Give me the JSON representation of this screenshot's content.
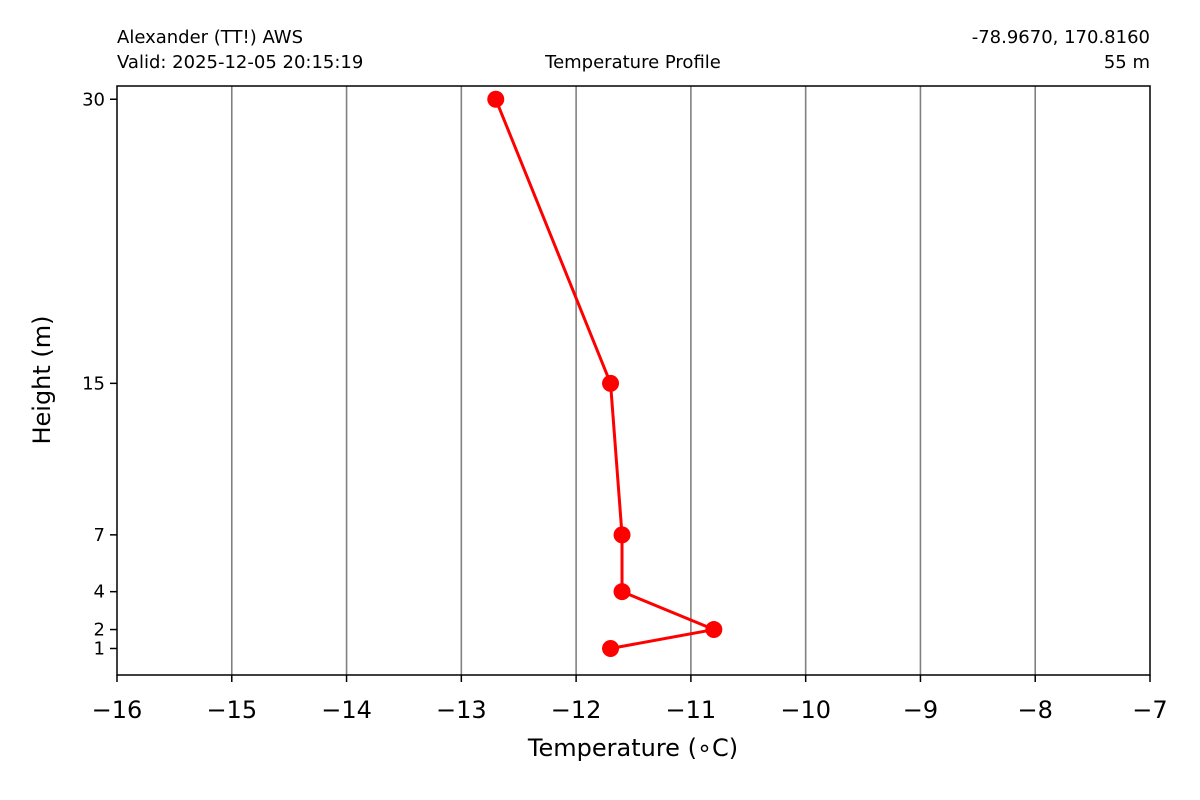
{
  "header": {
    "station": "Alexander (TT!) AWS",
    "valid": "Valid: 2025-12-05 20:15:19",
    "title": "Temperature Profile",
    "coords": "-78.9670, 170.8160",
    "elevation": "55 m"
  },
  "chart_data": {
    "type": "line",
    "title": "Temperature Profile",
    "xlabel": "Temperature (∘C)",
    "ylabel": "Height (m)",
    "xlim": [
      -16,
      -7
    ],
    "ylim": [
      -0.4,
      30.7
    ],
    "xticks": [
      -16,
      -15,
      -14,
      -13,
      -12,
      -11,
      -10,
      -9,
      -8,
      -7
    ],
    "xtick_labels": [
      "−16",
      "−15",
      "−14",
      "−13",
      "−12",
      "−11",
      "−10",
      "−9",
      "−8",
      "−7"
    ],
    "yticks": [
      1,
      2,
      4,
      7,
      15,
      30
    ],
    "ytick_labels": [
      "1",
      "2",
      "4",
      "7",
      "15",
      "30"
    ],
    "grid": "vertical",
    "series": [
      {
        "color": "#ff0000",
        "marker": "circle",
        "x": [
          -11.7,
          -10.8,
          -11.6,
          -11.6,
          -11.7,
          -12.7
        ],
        "y": [
          1,
          2,
          4,
          7,
          15,
          30
        ]
      }
    ]
  }
}
